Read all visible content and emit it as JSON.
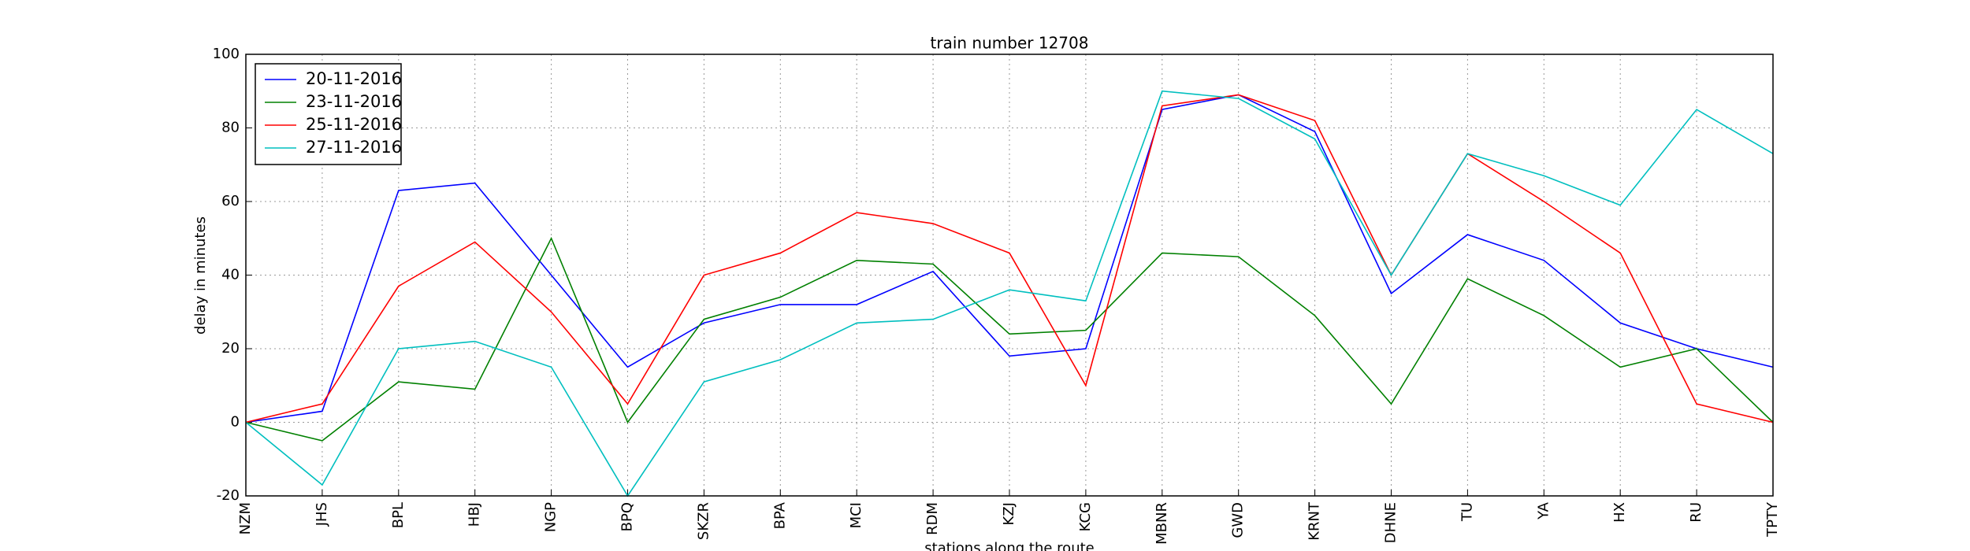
{
  "chart_data": {
    "type": "line",
    "title": "train number 12708",
    "x_label": "stations along the route",
    "y_label": "delay in minutes",
    "categories": [
      "NZM",
      "JHS",
      "BPL",
      "HBJ",
      "NGP",
      "BPQ",
      "SKZR",
      "BPA",
      "MCI",
      "RDM",
      "KZJ",
      "KCG",
      "MBNR",
      "GWD",
      "KRNT",
      "DHNE",
      "TU",
      "YA",
      "HX",
      "RU",
      "TPTY"
    ],
    "series": [
      {
        "name": "20-11-2016",
        "color": "#0000ff",
        "values": [
          0,
          3,
          63,
          65,
          40,
          15,
          27,
          32,
          32,
          41,
          18,
          20,
          85,
          89,
          79,
          35,
          51,
          44,
          27,
          20,
          15
        ]
      },
      {
        "name": "23-11-2016",
        "color": "#008000",
        "values": [
          0,
          -5,
          11,
          9,
          50,
          0,
          28,
          34,
          44,
          43,
          24,
          25,
          46,
          45,
          29,
          5,
          39,
          29,
          15,
          20,
          0
        ]
      },
      {
        "name": "25-11-2016",
        "color": "#ff0000",
        "values": [
          0,
          5,
          37,
          49,
          30,
          5,
          40,
          46,
          57,
          54,
          46,
          10,
          86,
          89,
          82,
          40,
          73,
          60,
          46,
          5,
          0
        ]
      },
      {
        "name": "27-11-2016",
        "color": "#00bfbf",
        "values": [
          0,
          -17,
          20,
          22,
          15,
          -20,
          11,
          17,
          27,
          28,
          36,
          33,
          90,
          88,
          77,
          40,
          73,
          67,
          59,
          85,
          73
        ]
      }
    ],
    "ylim": [
      -20,
      100
    ],
    "yticks": [
      -20,
      0,
      20,
      40,
      60,
      80,
      100
    ],
    "grid": true,
    "legend": "upper-left"
  }
}
